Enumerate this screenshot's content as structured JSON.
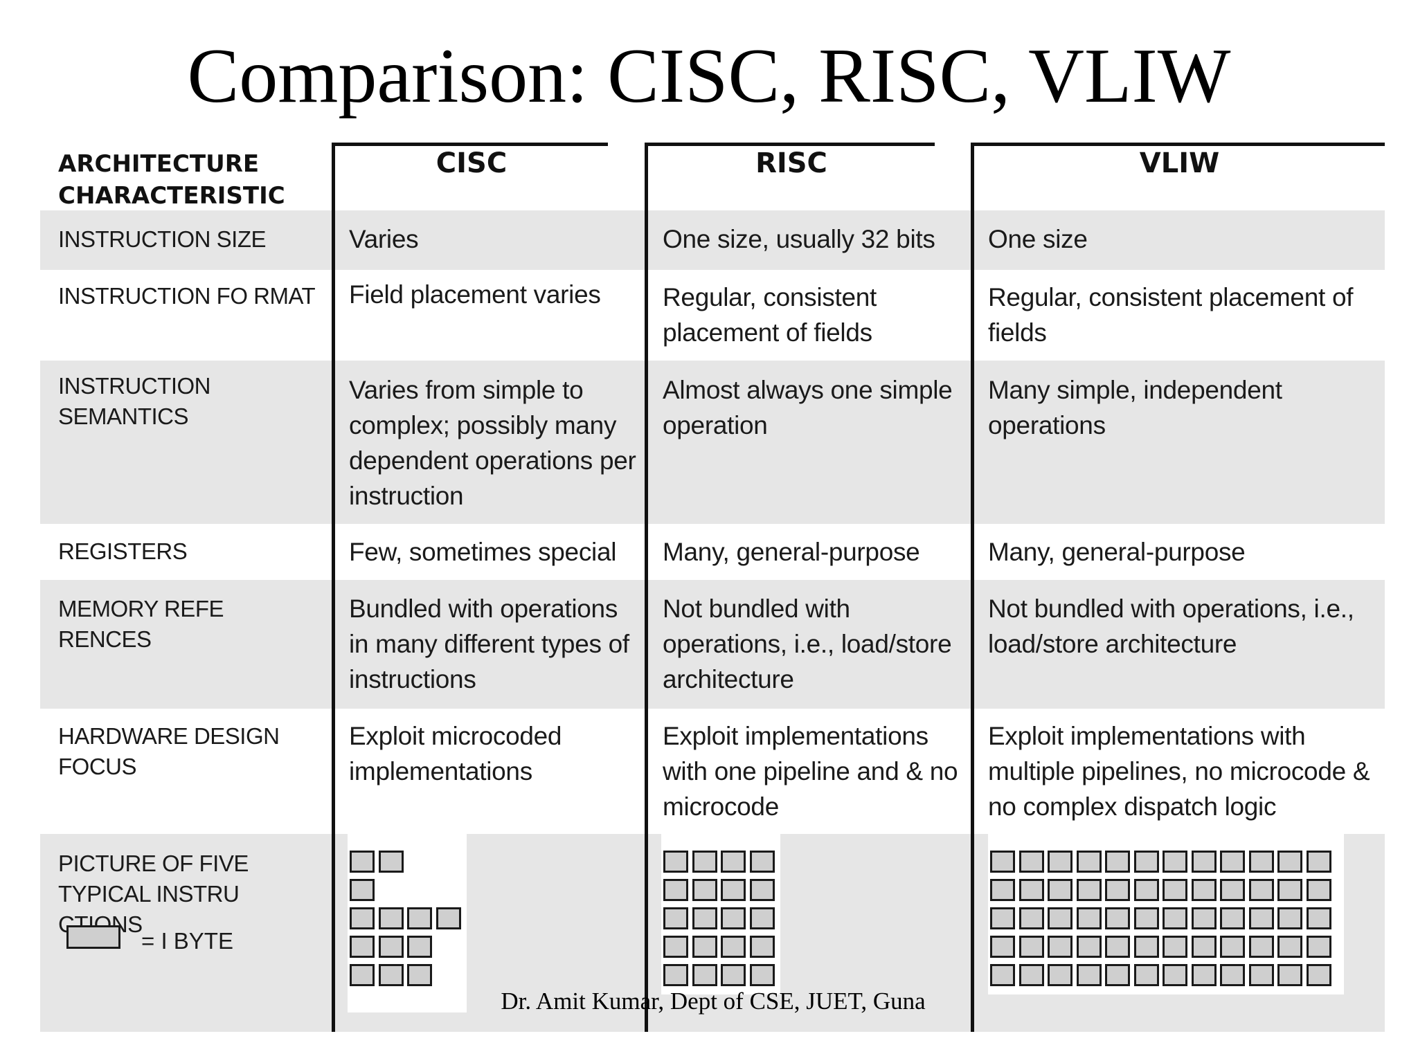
{
  "title": "Comparison: CISC, RISC, VLIW",
  "table": {
    "header": {
      "characteristic": "ARCHITECTURE\nCHARACTERISTIC",
      "cisc": "CISC",
      "risc": "RISC",
      "vliw": "VLIW"
    },
    "rows": [
      {
        "label": "INSTRUCTION SIZE",
        "cisc": "Varies",
        "risc": "One size, usually 32 bits",
        "vliw": "One size"
      },
      {
        "label": "INSTRUCTION FO RMAT",
        "cisc": "Field placement varies",
        "risc": "Regular, consistent placement of fields",
        "vliw": "Regular, consistent placement of fields"
      },
      {
        "label": "INSTRUCTION\nSEMANTICS",
        "cisc": "Varies from simple to complex; possibly many dependent operations per instruction",
        "risc": "Almost always one simple operation",
        "vliw": "Many simple, independent operations"
      },
      {
        "label": "REGISTERS",
        "cisc": "Few, sometimes special",
        "risc": "Many, general-purpose",
        "vliw": "Many, general-purpose"
      },
      {
        "label": "MEMORY REFE RENCES",
        "cisc": "Bundled with operations in many different types of instructions",
        "risc": "Not bundled with operations, i.e., load/store architecture",
        "vliw": "Not bundled with operations, i.e., load/store architecture"
      },
      {
        "label": "HARDWARE DESIGN\nFOCUS",
        "cisc": "Exploit microcoded implementations",
        "risc": "Exploit implementations with one pipeline and & no microcode",
        "vliw": "Exploit implementations with multiple pipelines, no microcode & no complex dispatch logic"
      }
    ],
    "picture_row": {
      "label": "PICTURE OF FIVE\nTYPICAL INSTRU CTIONS",
      "legend": "= I BYTE",
      "cisc_instruction_bytes": [
        2,
        1,
        4,
        3,
        3
      ],
      "risc_instruction_bytes": [
        4,
        4,
        4,
        4,
        4
      ],
      "vliw_instruction_bytes": [
        12,
        12,
        12,
        12,
        12
      ]
    }
  },
  "footer": "Dr. Amit Kumar, Dept of CSE, JUET, Guna"
}
